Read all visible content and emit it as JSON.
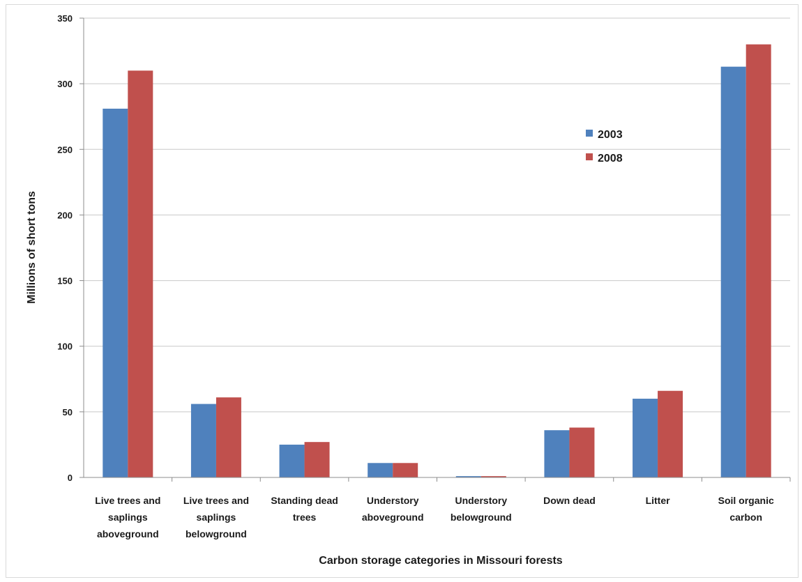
{
  "chart_data": {
    "type": "bar",
    "categories": [
      [
        "Live trees and",
        "saplings",
        "aboveground"
      ],
      [
        "Live trees and",
        "saplings",
        "belowground"
      ],
      [
        "Standing dead",
        "trees"
      ],
      [
        "Understory",
        "aboveground"
      ],
      [
        "Understory",
        "belowground"
      ],
      [
        "Down dead"
      ],
      [
        "Litter"
      ],
      [
        "Soil organic",
        "carbon"
      ]
    ],
    "series": [
      {
        "name": "2003",
        "color": "#4f81bd",
        "values": [
          281,
          56,
          25,
          11,
          1,
          36,
          60,
          313
        ]
      },
      {
        "name": "2008",
        "color": "#c0504d",
        "values": [
          310,
          61,
          27,
          11,
          1,
          38,
          66,
          330
        ]
      }
    ],
    "xlabel": "Carbon storage categories in Missouri forests",
    "ylabel": "Millions of short tons",
    "ylim": [
      0,
      350
    ],
    "yticks": [
      0,
      50,
      100,
      150,
      200,
      250,
      300,
      350
    ],
    "grid": true,
    "legend_position": "upper-right-inside"
  }
}
